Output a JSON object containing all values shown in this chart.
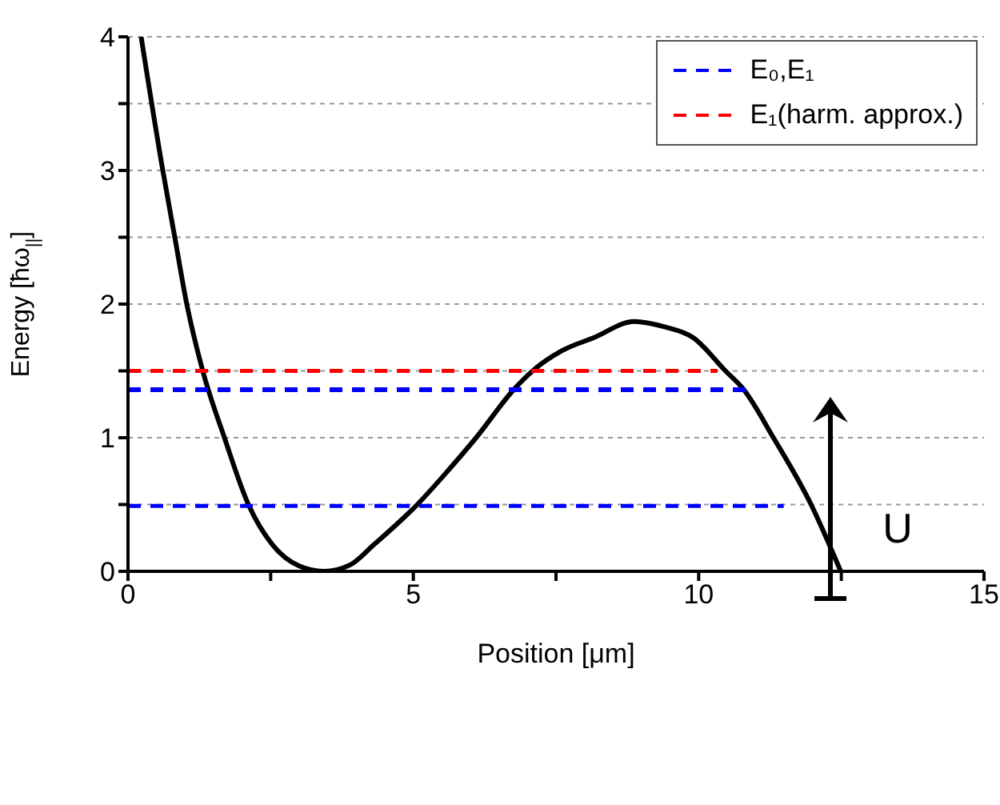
{
  "chart_data": {
    "type": "line",
    "xlabel": "Position [μm]",
    "ylabel": "Energy [ħω$_{||}$]",
    "xlim": [
      0,
      15
    ],
    "ylim": [
      0,
      4
    ],
    "xticks": [
      0,
      {
        "value": 2.5,
        "label": null
      },
      5,
      {
        "value": 7.5,
        "label": null
      },
      10,
      {
        "value": 12.5,
        "label": null
      },
      15
    ],
    "yticks": [
      0,
      {
        "value": 0.5,
        "label": null
      },
      1,
      {
        "value": 1.5,
        "label": null
      },
      2,
      {
        "value": 2.5,
        "label": null
      },
      3,
      {
        "value": 3.5,
        "label": null
      },
      4
    ],
    "grid": "y",
    "legend": "top right",
    "marker": "none",
    "annotations": [
      "U"
    ],
    "series": [
      {
        "color": "#000000",
        "line_style": "solid",
        "x": [
          0.23,
          0.61,
          0.82,
          1.03,
          1.31,
          1.69,
          2.11,
          2.53,
          3.0,
          3.43,
          3.9,
          4.31,
          5.07,
          5.6,
          6.1,
          6.76,
          7.09,
          7.6,
          8.17,
          8.87,
          9.4,
          9.9,
          10.47,
          10.79,
          11.31,
          11.97,
          12.49
        ],
        "values": [
          4,
          3,
          2.5,
          2,
          1.5,
          1,
          0.5,
          0.2,
          0.04,
          0,
          0.05,
          0.2,
          0.5,
          0.75,
          1,
          1.36,
          1.5,
          1.65,
          1.75,
          1.87,
          1.83,
          1.75,
          1.5,
          1.36,
          1,
          0.5,
          0
        ]
      },
      {
        "name": "E₀,E₁",
        "color": "#0000ff",
        "line_style": "dashed",
        "x": [
          0,
          11.49
        ],
        "values": [
          0.49,
          0.49
        ]
      },
      {
        "color": "#0000ff",
        "line_style": "dashed",
        "x": [
          0,
          10.89
        ],
        "values": [
          1.36,
          1.36
        ]
      },
      {
        "name": "E₁(harm. approx.)",
        "color": "#ff0000",
        "line_style": "dashed",
        "x": [
          0,
          10.33
        ],
        "values": [
          1.5,
          1.5
        ]
      }
    ]
  }
}
